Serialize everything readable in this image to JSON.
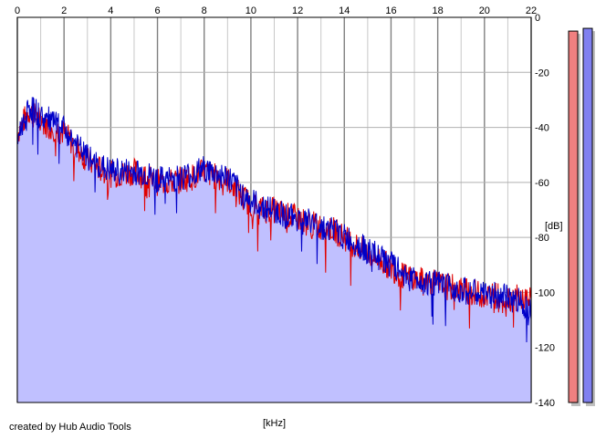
{
  "chart_data": {
    "type": "area",
    "x_unit_label": "[kHz]",
    "y_unit_label": "[dB]",
    "x_ticks": [
      "0",
      "2",
      "4",
      "6",
      "8",
      "10",
      "12",
      "14",
      "16",
      "18",
      "20",
      "22"
    ],
    "y_ticks": [
      "0",
      "-20",
      "-40",
      "-60",
      "-80",
      "-100",
      "-120",
      "-140"
    ],
    "xlim": [
      0,
      22
    ],
    "ylim": [
      -140,
      0
    ],
    "grid": true,
    "x": [
      0,
      0.5,
      1,
      1.5,
      2,
      2.5,
      3,
      3.5,
      4,
      4.5,
      5,
      5.5,
      6,
      6.5,
      7,
      7.5,
      8,
      8.5,
      9,
      9.5,
      10,
      10.5,
      11,
      11.5,
      12,
      12.5,
      13,
      13.5,
      14,
      14.5,
      15,
      15.5,
      16,
      16.5,
      17,
      17.5,
      18,
      18.5,
      19,
      19.5,
      20,
      20.5,
      21,
      21.5,
      22
    ],
    "series": [
      {
        "color": "#e00000",
        "values": [
          -42,
          -34,
          -38,
          -40,
          -42,
          -47,
          -52,
          -55,
          -57,
          -57,
          -56,
          -58,
          -60,
          -60,
          -59,
          -58,
          -56,
          -58,
          -59,
          -64,
          -68,
          -70,
          -70,
          -72,
          -73,
          -75,
          -76,
          -77,
          -80,
          -83,
          -86,
          -88,
          -91,
          -94,
          -95,
          -96,
          -97,
          -98,
          -99,
          -100,
          -101,
          -101,
          -102,
          -102,
          -103
        ]
      },
      {
        "color": "#0000c8",
        "values": [
          -44,
          -32,
          -36,
          -38,
          -41,
          -46,
          -51,
          -54,
          -56,
          -56,
          -56,
          -57,
          -59,
          -59,
          -58,
          -57,
          -55,
          -57,
          -58,
          -63,
          -67,
          -69,
          -70,
          -72,
          -73,
          -74,
          -76,
          -77,
          -80,
          -82,
          -85,
          -87,
          -90,
          -93,
          -95,
          -96,
          -97,
          -98,
          -99,
          -100,
          -101,
          -101,
          -102,
          -103,
          -106
        ]
      }
    ],
    "fill_color": "#c0c0ff",
    "level_meters": [
      {
        "color": "#f08080",
        "level_db": -5
      },
      {
        "color": "#8080f0",
        "level_db": -4
      }
    ]
  },
  "credit": "created by Hub Audio Tools"
}
